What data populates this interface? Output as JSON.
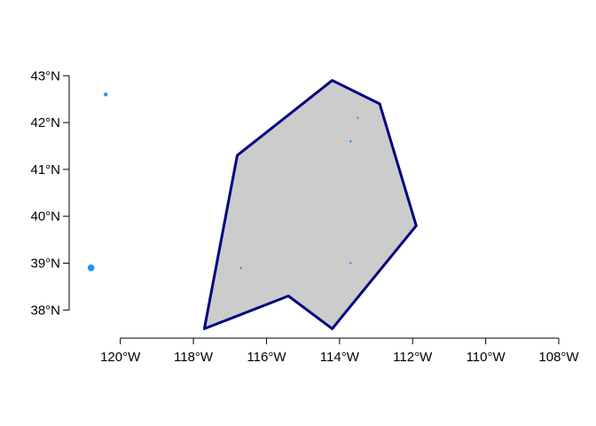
{
  "chart_data": {
    "type": "scatter",
    "title": "",
    "xlabel": "",
    "ylabel": "",
    "xlim": [
      -121.4,
      -108.0
    ],
    "ylim": [
      37.4,
      43.1
    ],
    "x_ticks": [
      -120,
      -118,
      -116,
      -114,
      -112,
      -110,
      -108
    ],
    "x_tick_labels": [
      "120°W",
      "118°W",
      "116°W",
      "114°W",
      "112°W",
      "110°W",
      "108°W"
    ],
    "y_ticks": [
      38,
      39,
      40,
      41,
      42,
      43
    ],
    "y_tick_labels": [
      "38°N",
      "39°N",
      "40°N",
      "41°N",
      "42°N",
      "43°N"
    ],
    "grid": false,
    "polygon": {
      "fill": "#cccccc",
      "stroke": "#000080",
      "vertices": [
        [
          -117.7,
          37.6
        ],
        [
          -116.8,
          41.3
        ],
        [
          -114.2,
          42.9
        ],
        [
          -112.9,
          42.4
        ],
        [
          -111.9,
          39.8
        ],
        [
          -114.2,
          37.6
        ],
        [
          -115.4,
          38.3
        ]
      ]
    },
    "points": {
      "color": "#1e90ff",
      "data": [
        {
          "x": -120.4,
          "y": 42.6,
          "size": 2
        },
        {
          "x": -120.8,
          "y": 38.9,
          "size": 4
        },
        {
          "x": -116.7,
          "y": 38.9,
          "size": 1
        },
        {
          "x": -113.7,
          "y": 39.0,
          "size": 1
        },
        {
          "x": -113.7,
          "y": 41.6,
          "size": 1
        },
        {
          "x": -113.5,
          "y": 42.1,
          "size": 1
        }
      ]
    }
  }
}
